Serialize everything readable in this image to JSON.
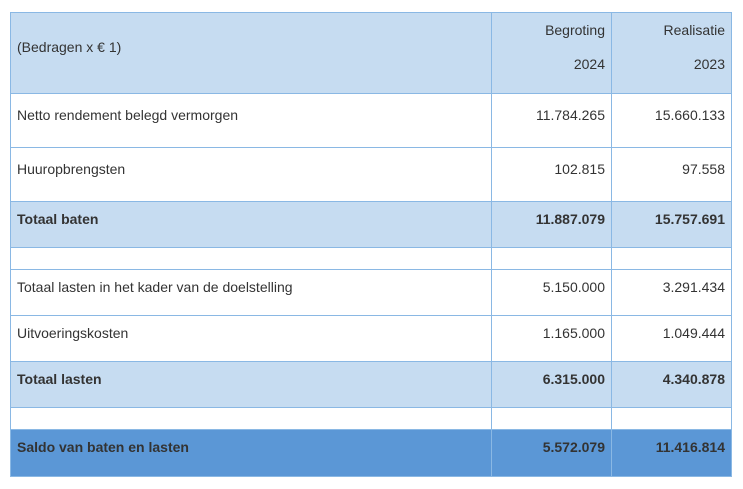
{
  "table": {
    "header": {
      "label": "(Bedragen x € 1)",
      "columns": [
        [
          "Begroting",
          "2024"
        ],
        [
          "Realisatie",
          "2023"
        ]
      ]
    },
    "rows": [
      [
        "Netto rendement belegd vermorgen",
        "11.784.265",
        "15.660.133"
      ],
      [
        "Huuropbrengsten",
        "102.815",
        "97.558"
      ],
      [
        "Totaal baten",
        "11.887.079",
        "15.757.691"
      ],
      [
        "Totaal lasten in het kader van de doelstelling",
        "5.150.000",
        "3.291.434"
      ],
      [
        "Uitvoeringskosten",
        "1.165.000",
        "1.049.444"
      ],
      [
        "Totaal lasten",
        "6.315.000",
        "4.340.878"
      ],
      [
        "Saldo van baten en lasten",
        "5.572.079",
        "11.416.814"
      ]
    ]
  }
}
